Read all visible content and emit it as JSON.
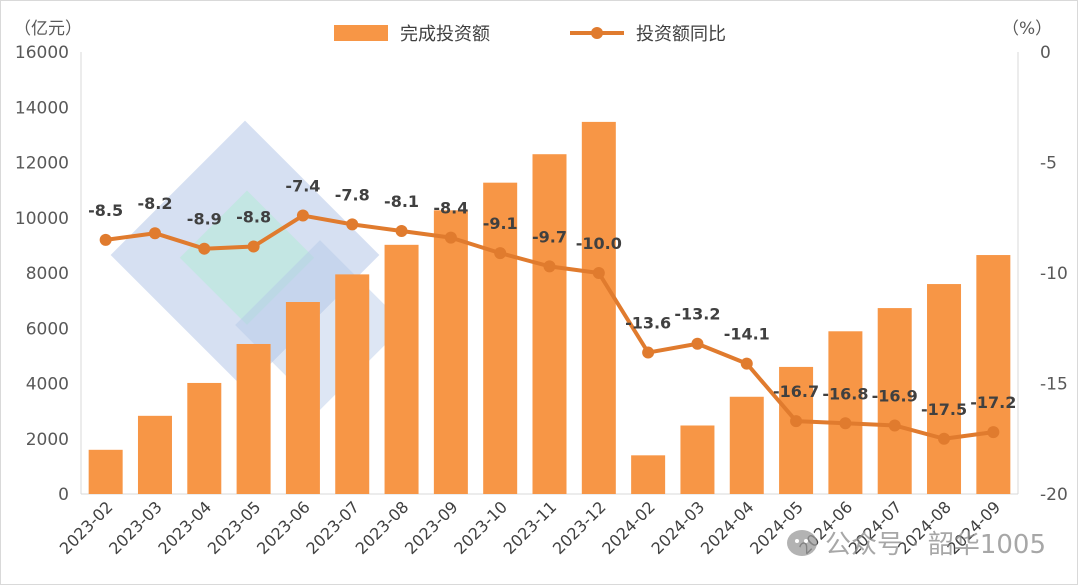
{
  "chart_data": {
    "type": "bar+line",
    "categories": [
      "2023-02",
      "2023-03",
      "2023-04",
      "2023-05",
      "2023-06",
      "2023-07",
      "2023-08",
      "2023-09",
      "2023-10",
      "2023-11",
      "2023-12",
      "2024-02",
      "2024-03",
      "2024-04",
      "2024-05",
      "2024-06",
      "2024-07",
      "2024-08",
      "2024-09"
    ],
    "series": [
      {
        "name": "完成投资额",
        "type": "bar",
        "axis": "left",
        "color": "#f79646",
        "values": [
          1600,
          2830,
          4020,
          5430,
          6950,
          7950,
          9020,
          10270,
          11270,
          12300,
          13470,
          1400,
          2480,
          3520,
          4600,
          5890,
          6730,
          7600,
          8650
        ]
      },
      {
        "name": "投资额同比",
        "type": "line",
        "axis": "right",
        "color": "#e07b2e",
        "values": [
          -8.5,
          -8.2,
          -8.9,
          -8.8,
          -7.4,
          -7.8,
          -8.1,
          -8.4,
          -9.1,
          -9.7,
          -10.0,
          -13.6,
          -13.2,
          -14.1,
          -16.7,
          -16.8,
          -16.9,
          -17.5,
          -17.2
        ],
        "labels": [
          "-8.5",
          "-8.2",
          "-8.9",
          "-8.8",
          "-7.4",
          "-7.8",
          "-8.1",
          "-8.4",
          "-9.1",
          "-9.7",
          "-10.0",
          "-13.6",
          "-13.2",
          "-14.1",
          "-16.7",
          "-16.8",
          "-16.9",
          "-17.5",
          "-17.2"
        ]
      }
    ],
    "y_left": {
      "unit": "（亿元）",
      "range": [
        0,
        16000
      ],
      "ticks": [
        0,
        2000,
        4000,
        6000,
        8000,
        10000,
        12000,
        14000,
        16000
      ],
      "tick_labels": [
        "0",
        "2000",
        "4000",
        "6000",
        "8000",
        "10000",
        "12000",
        "14000",
        "16000"
      ]
    },
    "y_right": {
      "unit": "（%）",
      "range": [
        -20,
        0
      ],
      "ticks": [
        0,
        -5,
        -10,
        -15,
        -20
      ],
      "tick_labels": [
        "0",
        "-5",
        "-10",
        "-15",
        "-20"
      ]
    },
    "legend": {
      "position": "top-center",
      "items": [
        "完成投资额",
        "投资额同比"
      ]
    },
    "grid": false
  },
  "watermark": {
    "text": "公众号 · 韶华1005"
  }
}
